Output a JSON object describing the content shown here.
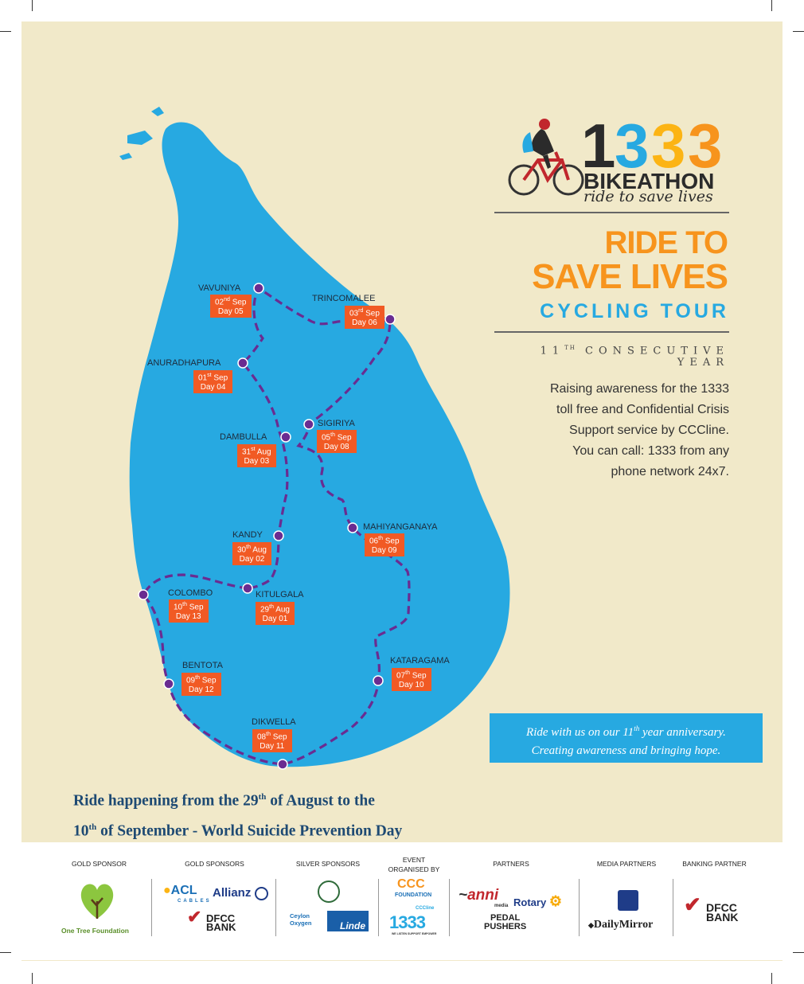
{
  "logo": {
    "digits": [
      "1",
      "3",
      "3",
      "3"
    ],
    "name": "BIKEATHON",
    "tagline": "ride to save lives"
  },
  "headline": {
    "line1": "RIDE TO",
    "line2": "SAVE LIVES",
    "line3": "CYCLING TOUR"
  },
  "consecutive_year": {
    "num": "11",
    "sup": "TH",
    "rest": " CONSECUTIVE YEAR"
  },
  "description": [
    "Raising awareness for the 1333",
    "toll free and Confidential Crisis",
    "Support service by CCCline.",
    "You can call: 1333 from any",
    "phone network 24x7."
  ],
  "anniversary": {
    "line1_pre": "Ride with us on our 11",
    "line1_sup": "th",
    "line1_post": " year anniversary.",
    "line2": "Creating awareness and bringing hope."
  },
  "dates": {
    "line1_pre": "Ride happening from the 29",
    "line1_sup": "th",
    "line1_post": " of August to the",
    "line2_num": "10",
    "line2_sup": "th",
    "line2_post": " of September - World Suicide Prevention Day"
  },
  "stops": [
    {
      "city": "VAVUNIYA",
      "num": "02",
      "sup": "nd",
      "mon": " Sep",
      "day": "Day 05"
    },
    {
      "city": "TRINCOMALEE",
      "num": "03",
      "sup": "rd",
      "mon": " Sep",
      "day": "Day 06"
    },
    {
      "city": "ANURADHAPURA",
      "num": "01",
      "sup": "st",
      "mon": " Sep",
      "day": "Day 04"
    },
    {
      "city": "SIGIRIYA",
      "num": "05",
      "sup": "th",
      "mon": " Sep",
      "day": "Day 08"
    },
    {
      "city": "DAMBULLA",
      "num": "31",
      "sup": "st",
      "mon": " Aug",
      "day": "Day 03"
    },
    {
      "city": "MAHIYANGANAYA",
      "num": "06",
      "sup": "th",
      "mon": " Sep",
      "day": "Day 09"
    },
    {
      "city": "KANDY",
      "num": "30",
      "sup": "th",
      "mon": " Aug",
      "day": "Day 02"
    },
    {
      "city": "COLOMBO",
      "num": "10",
      "sup": "th",
      "mon": " Sep",
      "day": "Day 13"
    },
    {
      "city": "KITULGALA",
      "num": "29",
      "sup": "th",
      "mon": " Aug",
      "day": "Day 01"
    },
    {
      "city": "BENTOTA",
      "num": "09",
      "sup": "th",
      "mon": " Sep",
      "day": "Day 12"
    },
    {
      "city": "KATARAGAMA",
      "num": "07",
      "sup": "th",
      "mon": " Sep",
      "day": "Day 10"
    },
    {
      "city": "DIKWELLA",
      "num": "08",
      "sup": "th",
      "mon": " Sep",
      "day": "Day 11"
    }
  ],
  "sponsor_labels": {
    "gold_sponsor": "GOLD SPONSOR",
    "gold_sponsors": "GOLD SPONSORS",
    "silver_sponsors": "SILVER SPONSORS",
    "event_l1": "EVENT",
    "event_l2": "ORGANISED BY",
    "partners": "PARTNERS",
    "media_partners": "MEDIA PARTNERS",
    "banking_partner": "BANKING PARTNER"
  },
  "sponsor_logos": {
    "one_tree": "One Tree Foundation",
    "acl": "ACL",
    "acl_sub": "CABLES",
    "allianz": "Allianz",
    "dfcc1": "DFCC",
    "dfcc2": "BANK",
    "ceylon1": "Ceylon",
    "ceylon2": "Oxygen",
    "linde": "Linde",
    "ccc": "CCC",
    "foundation": "FOUNDATION",
    "cccline": "CCCline",
    "logo1333": "1333",
    "logo1333_sub": "WE LISTEN SUPPORT EMPOWER",
    "anni": "anni",
    "anni_sub": "media",
    "rotary": "Rotary",
    "pedal1": "PEDAL",
    "pedal2": "PUSHERS",
    "daily_mirror": "DailyMirror",
    "dfcc3": "DFCC",
    "dfcc4": "BANK"
  },
  "colors": {
    "background": "#f1e9c9",
    "map_blue": "#27a9e1",
    "route_purple": "#6a2c91",
    "tag_orange": "#f15a24",
    "headline_orange": "#f7941d",
    "date_text_blue": "#1e4a73"
  }
}
